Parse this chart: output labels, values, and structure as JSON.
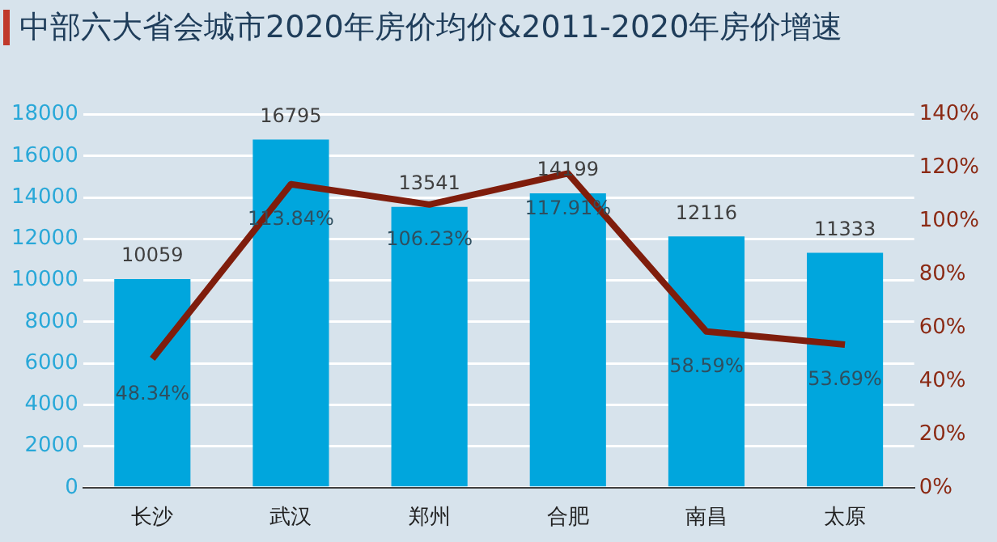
{
  "chart_data": {
    "type": "bar",
    "title": "中部六大省会城市2020年房价均价&2011-2020年房价增速",
    "categories": [
      "长沙",
      "武汉",
      "郑州",
      "合肥",
      "南昌",
      "太原"
    ],
    "series": [
      {
        "color": "#00a6dd",
        "values": [
          10059,
          16795,
          13541,
          14199,
          12116,
          11333
        ]
      },
      {
        "type": "line",
        "axis": "y2",
        "color": "#7f1d0c",
        "values": [
          48.34,
          113.84,
          106.23,
          117.91,
          58.59,
          53.69
        ],
        "value_labels": [
          "48.34%",
          "113.84%",
          "106.23%",
          "117.91%",
          "58.59%",
          "53.69%"
        ]
      }
    ],
    "ylim": [
      0,
      18000
    ],
    "yticks": [
      0,
      2000,
      4000,
      6000,
      8000,
      10000,
      12000,
      14000,
      16000,
      18000
    ],
    "y2lim": [
      0,
      140
    ],
    "y2ticks": [
      {
        "value": 0,
        "label": "0%"
      },
      {
        "value": 20,
        "label": "20%"
      },
      {
        "value": 40,
        "label": "40%"
      },
      {
        "value": 60,
        "label": "60%"
      },
      {
        "value": 80,
        "label": "80%"
      },
      {
        "value": 100,
        "label": "100%"
      },
      {
        "value": 120,
        "label": "120%"
      },
      {
        "value": 140,
        "label": "140%"
      }
    ],
    "grid": "y",
    "legend": false,
    "marker": "none",
    "line_style": "solid",
    "data_labels": true
  }
}
